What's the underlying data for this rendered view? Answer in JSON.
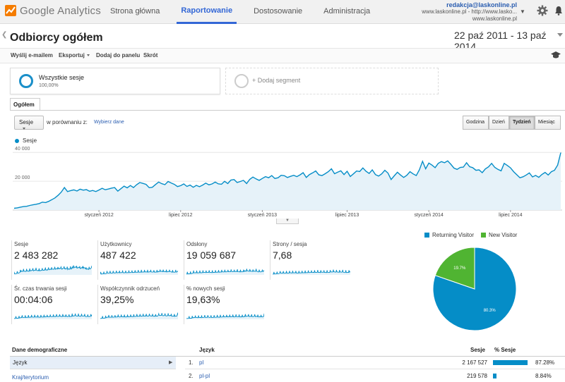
{
  "app": {
    "name": "Google Analytics"
  },
  "nav": [
    "Strona główna",
    "Raportowanie",
    "Dostosowanie",
    "Administracja"
  ],
  "account": {
    "email": "redakcja@laskonline.pl",
    "property": "www.laskonline.pl - http://www.lasko...",
    "view": "www.laskonline.pl"
  },
  "report": {
    "title": "Odbiorcy ogółem",
    "date_range": "22 paź 2011 - 13 paź 2014"
  },
  "toolbar": {
    "email": "Wyślij e-mailem",
    "export": "Eksportuj",
    "dashboard": "Dodaj do panelu",
    "shortcut": "Skrót"
  },
  "segments": {
    "active_label": "Wszystkie sesje",
    "active_pct": "100,00%",
    "add_label": "+ Dodaj segment"
  },
  "tab": "Ogółem",
  "controls": {
    "metric": "Sesje",
    "compare_label": "w porównaniu z:",
    "choose": "Wybierz dane",
    "granularity": [
      "Godzina",
      "Dzień",
      "Tydzień",
      "Miesiąc"
    ],
    "granularity_active": "Tydzień"
  },
  "chart_data": [
    {
      "type": "area",
      "series": [
        {
          "name": "Sesje",
          "color": "#058dc7"
        }
      ],
      "yticks": [
        "20 000",
        "40 000"
      ],
      "ylim": [
        0,
        45000
      ],
      "xticks": [
        "styczeń 2012",
        "lipiec 2012",
        "styczeń 2013",
        "lipiec 2013",
        "styczeń 2014",
        "lipiec 2014"
      ],
      "values": [
        1200,
        1500,
        2000,
        2400,
        2600,
        3200,
        3600,
        4000,
        4500,
        5500,
        5200,
        6000,
        7200,
        8400,
        10200,
        12400,
        15600,
        12800,
        13500,
        14000,
        13200,
        14500,
        13800,
        14200,
        13000,
        13600,
        12800,
        13900,
        15100,
        14100,
        14600,
        15200,
        15600,
        13100,
        14800,
        16600,
        15400,
        17000,
        15600,
        17600,
        19100,
        18500,
        17800,
        15500,
        15800,
        17700,
        19400,
        18300,
        17600,
        19800,
        18800,
        17800,
        16300,
        16900,
        18100,
        16400,
        17300,
        15800,
        17100,
        16200,
        17300,
        18700,
        17500,
        18100,
        19400,
        18200,
        17900,
        19900,
        18400,
        20800,
        21200,
        19100,
        19800,
        20600,
        18400,
        21300,
        22900,
        21600,
        20600,
        21900,
        23200,
        22400,
        23900,
        21900,
        22400,
        24100,
        23800,
        22600,
        23400,
        24100,
        23200,
        24400,
        25900,
        22600,
        24600,
        25800,
        27100,
        24400,
        23900,
        25200,
        26600,
        28600,
        25200,
        26300,
        27200,
        24600,
        26900,
        23300,
        25100,
        27100,
        26700,
        29200,
        26900,
        25400,
        27900,
        24600,
        23600,
        25100,
        27600,
        25700,
        21200,
        23700,
        26200,
        24300,
        22600,
        24100,
        26600,
        25100,
        23900,
        27900,
        33800,
        28600,
        32600,
        31200,
        29400,
        32400,
        33600,
        32800,
        34100,
        31800,
        29100,
        28200,
        29600,
        29800,
        32800,
        30100,
        29400,
        27600,
        27900,
        25900,
        28500,
        30000,
        32400,
        29600,
        28200,
        27200,
        32400,
        30900,
        29300,
        26600,
        24500,
        22400,
        23100,
        24300,
        25800,
        23000,
        24000,
        22700,
        24700,
        26100,
        24300,
        26600,
        27600,
        31200,
        39800
      ]
    },
    {
      "type": "pie",
      "slices": [
        {
          "label": "Returning Visitor",
          "value": 80.3,
          "color": "#058dc7",
          "text": "80.3%"
        },
        {
          "label": "New Visitor",
          "value": 19.7,
          "color": "#50b432",
          "text": "19.7%"
        }
      ]
    }
  ],
  "scorecards": [
    {
      "label": "Sesje",
      "value": "2 483 282"
    },
    {
      "label": "Użytkownicy",
      "value": "487 422"
    },
    {
      "label": "Odsłony",
      "value": "19 059 687"
    },
    {
      "label": "Strony / sesja",
      "value": "7,68"
    },
    {
      "label": "Śr. czas trwania sesji",
      "value": "00:04:06"
    },
    {
      "label": "Współczynnik odrzuceń",
      "value": "39,25%"
    },
    {
      "label": "% nowych sesji",
      "value": "19,63%"
    }
  ],
  "demographics": {
    "header": "Dane demograficzne",
    "items": [
      "Język",
      "Kraj/terytorium"
    ]
  },
  "lang_table": {
    "col_lang": "Język",
    "col_sessions": "Sesje",
    "col_pct": "% Sesje",
    "rows": [
      {
        "num": "1.",
        "lang": "pl",
        "sessions": "2 167 527",
        "pct": "87.28%",
        "share": 87.28
      },
      {
        "num": "2.",
        "lang": "pl-pl",
        "sessions": "219 578",
        "pct": "8.84%",
        "share": 8.84
      }
    ]
  }
}
